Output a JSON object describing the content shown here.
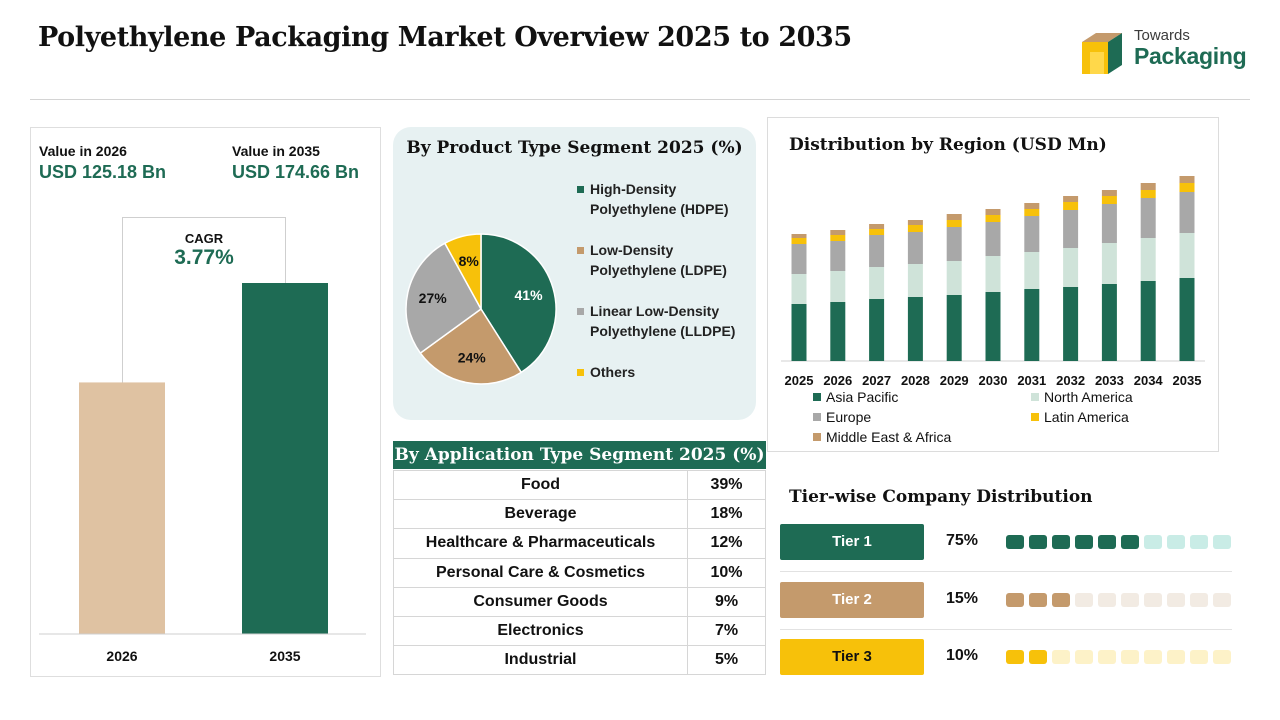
{
  "header": {
    "title": "Polyethylene Packaging Market Overview 2025 to 2035",
    "logo_line1": "Towards",
    "logo_line2": "Packaging"
  },
  "market_value": {
    "left_label": "Value in 2026",
    "left_value": "USD 125.18 Bn",
    "right_label": "Value in 2035",
    "right_value": "USD 174.66 Bn",
    "cagr_label": "CAGR",
    "cagr_value": "3.77%"
  },
  "product_segment": {
    "title": "By Product Type Segment 2025 (%)"
  },
  "application_segment": {
    "title": "By Application Type Segment 2025 (%)",
    "rows": [
      {
        "name": "Food",
        "value": "39%"
      },
      {
        "name": "Beverage",
        "value": "18%"
      },
      {
        "name": "Healthcare & Pharmaceuticals",
        "value": "12%"
      },
      {
        "name": "Personal Care & Cosmetics",
        "value": "10%"
      },
      {
        "name": "Consumer Goods",
        "value": "9%"
      },
      {
        "name": "Electronics",
        "value": "7%"
      },
      {
        "name": "Industrial",
        "value": "5%"
      }
    ]
  },
  "region": {
    "title": "Distribution by Region (USD Mn)"
  },
  "tiers": {
    "title": "Tier-wise Company Distribution",
    "items": [
      {
        "label": "Tier 1",
        "pct": "75%",
        "filled": 6,
        "total": 10,
        "color": "#1e6b54",
        "light": "#c9ece6",
        "text_color": "#ffffff"
      },
      {
        "label": "Tier 2",
        "pct": "15%",
        "filled": 3,
        "total": 10,
        "color": "#c49a6c",
        "light": "#f2ebe3",
        "text_color": "#ffffff"
      },
      {
        "label": "Tier 3",
        "pct": "10%",
        "filled": 2,
        "total": 10,
        "color": "#f7c10a",
        "light": "#fdf2c8",
        "text_color": "#111111"
      }
    ]
  },
  "chart_data": [
    {
      "type": "bar",
      "categories": [
        "2026",
        "2035"
      ],
      "values": [
        125.18,
        174.66
      ],
      "colors": [
        "#dfc2a2",
        "#1e6b54"
      ]
    },
    {
      "type": "pie",
      "title": "By Product Type Segment 2025 (%)",
      "labels": [
        "High-Density Polyethylene (HDPE)",
        "Low-Density Polyethylene (LDPE)",
        "Linear Low-Density Polyethylene (LLDPE)",
        "Others"
      ],
      "legend_lines": [
        [
          "High-Density",
          "Polyethylene (HDPE)"
        ],
        [
          "Low-Density",
          "Polyethylene (LDPE)"
        ],
        [
          "Linear Low-Density",
          "Polyethylene (LLDPE)"
        ],
        [
          "Others"
        ]
      ],
      "values": [
        41,
        24,
        27,
        8
      ],
      "colors": [
        "#1e6b54",
        "#c49a6c",
        "#a8a8a8",
        "#f7c10a"
      ]
    },
    {
      "type": "bar",
      "stacked": true,
      "title": "Distribution by Region (USD Mn)",
      "categories": [
        "2025",
        "2026",
        "2027",
        "2028",
        "2029",
        "2030",
        "2031",
        "2032",
        "2033",
        "2034",
        "2035"
      ],
      "series": [
        {
          "name": "Asia Pacific",
          "color": "#1e6b54",
          "values": [
            57,
            59,
            62,
            64,
            66,
            69,
            72,
            74,
            77,
            80,
            83
          ]
        },
        {
          "name": "North America",
          "color": "#cfe3d9",
          "values": [
            30,
            31,
            32,
            33,
            34,
            36,
            37,
            39,
            41,
            43,
            45
          ]
        },
        {
          "name": "Europe",
          "color": "#a8a8a8",
          "values": [
            30,
            30,
            32,
            32,
            34,
            34,
            36,
            38,
            39,
            40,
            41
          ]
        },
        {
          "name": "Latin America",
          "color": "#f7c10a",
          "values": [
            6,
            6,
            6,
            7,
            7,
            7,
            7,
            8,
            8,
            8,
            9
          ]
        },
        {
          "name": "Middle East & Africa",
          "color": "#c49a6c",
          "values": [
            4,
            5,
            5,
            5,
            6,
            6,
            6,
            6,
            6,
            7,
            7
          ]
        }
      ],
      "ylim": [
        0,
        190
      ],
      "legend_position": "bottom"
    }
  ]
}
